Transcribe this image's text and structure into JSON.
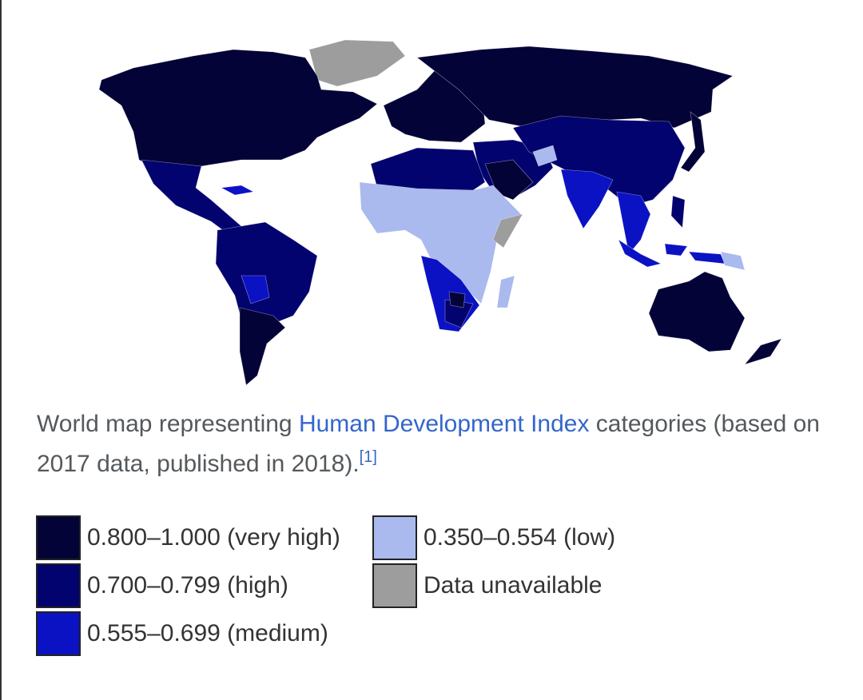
{
  "caption": {
    "before": "World map representing ",
    "link": "Human Development Index",
    "after": " categories (based on 2017 data, published in 2018).",
    "ref": "[1]"
  },
  "legend": [
    {
      "label": "0.800–1.000 (very high)",
      "color": "#030338"
    },
    {
      "label": "0.700–0.799 (high)",
      "color": "#03036f"
    },
    {
      "label": "0.555–0.699 (medium)",
      "color": "#0b12c4"
    },
    {
      "label": "0.350–0.554 (low)",
      "color": "#aab9ee"
    },
    {
      "label": "Data unavailable",
      "color": "#9d9d9d"
    }
  ]
}
